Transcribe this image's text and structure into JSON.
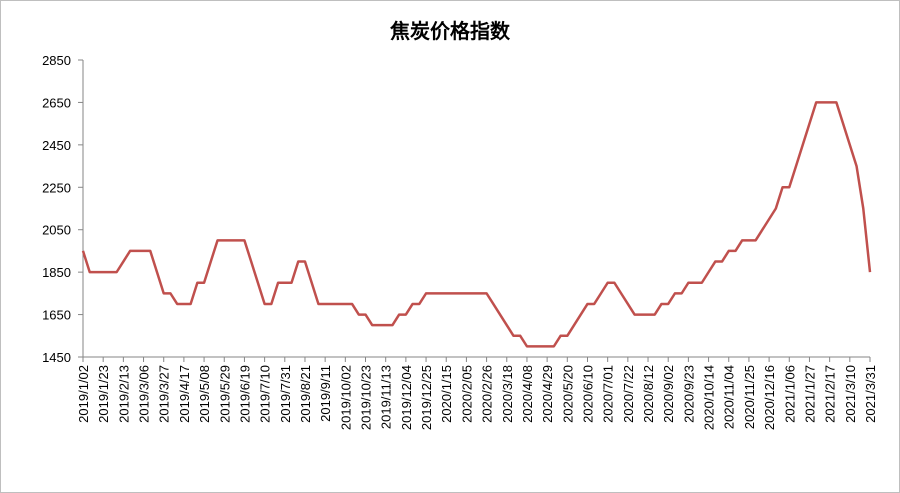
{
  "chart_data": {
    "type": "line",
    "title": "焦炭价格指数",
    "categories": [
      "2019/1/02",
      null,
      null,
      "2019/1/23",
      null,
      null,
      "2019/2/13",
      null,
      null,
      "2019/3/06",
      null,
      null,
      "2019/3/27",
      null,
      null,
      "2019/4/17",
      null,
      null,
      "2019/5/08",
      null,
      null,
      "2019/5/29",
      null,
      null,
      "2019/6/19",
      null,
      null,
      "2019/7/10",
      null,
      null,
      "2019/7/31",
      null,
      null,
      "2019/8/21",
      null,
      null,
      "2019/9/11",
      null,
      null,
      "2019/10/02",
      null,
      null,
      "2019/10/23",
      null,
      null,
      "2019/11/13",
      null,
      null,
      "2019/12/04",
      null,
      null,
      "2019/12/25",
      null,
      null,
      "2020/1/15",
      null,
      null,
      "2020/2/05",
      null,
      null,
      "2020/2/26",
      null,
      null,
      "2020/3/18",
      null,
      null,
      "2020/4/08",
      null,
      null,
      "2020/4/29",
      null,
      null,
      "2020/5/20",
      null,
      null,
      "2020/6/10",
      null,
      null,
      "2020/7/01",
      null,
      null,
      "2020/7/22",
      null,
      null,
      "2020/8/12",
      null,
      null,
      "2020/9/02",
      null,
      null,
      "2020/9/23",
      null,
      null,
      "2020/10/14",
      null,
      null,
      "2020/11/04",
      null,
      null,
      "2020/11/25",
      null,
      null,
      "2020/12/16",
      null,
      null,
      "2021/1/06",
      null,
      null,
      "2021/1/27",
      null,
      null,
      "2021/2/17",
      null,
      null,
      "2021/3/10",
      null,
      null,
      "2021/3/31"
    ],
    "values": [
      1950,
      1850,
      1850,
      1850,
      1850,
      1850,
      1900,
      1950,
      1950,
      1950,
      1950,
      1850,
      1750,
      1750,
      1700,
      1700,
      1700,
      1800,
      1800,
      1900,
      2000,
      2000,
      2000,
      2000,
      2000,
      1900,
      1800,
      1700,
      1700,
      1800,
      1800,
      1800,
      1900,
      1900,
      1800,
      1700,
      1700,
      1700,
      1700,
      1700,
      1700,
      1650,
      1650,
      1600,
      1600,
      1600,
      1600,
      1650,
      1650,
      1700,
      1700,
      1750,
      1750,
      1750,
      1750,
      1750,
      1750,
      1750,
      1750,
      1750,
      1750,
      1700,
      1650,
      1600,
      1550,
      1550,
      1500,
      1500,
      1500,
      1500,
      1500,
      1550,
      1550,
      1600,
      1650,
      1700,
      1700,
      1750,
      1800,
      1800,
      1750,
      1700,
      1650,
      1650,
      1650,
      1650,
      1700,
      1700,
      1750,
      1750,
      1800,
      1800,
      1800,
      1850,
      1900,
      1900,
      1950,
      1950,
      2000,
      2000,
      2000,
      2050,
      2100,
      2150,
      2250,
      2250,
      2350,
      2450,
      2550,
      2650,
      2650,
      2650,
      2650,
      2550,
      2450,
      2350,
      2150,
      1850
    ],
    "color": "#c0504d",
    "ylim": [
      1450,
      2850
    ],
    "yticks": [
      1450,
      1650,
      1850,
      2050,
      2250,
      2450,
      2650,
      2850
    ],
    "grid": false
  }
}
